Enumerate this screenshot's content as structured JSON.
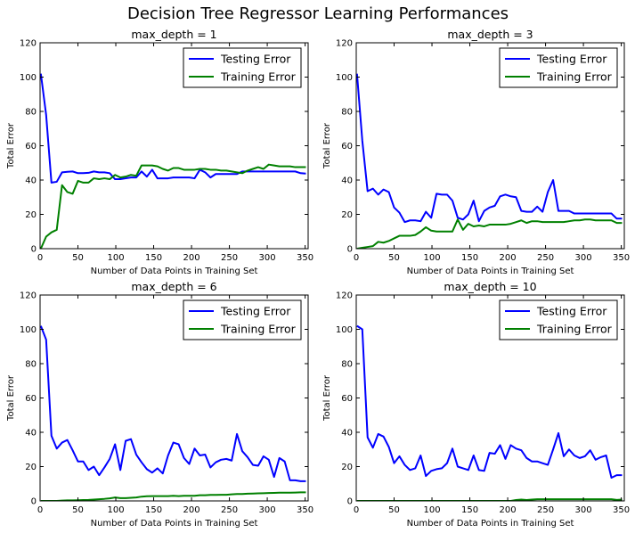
{
  "figure": {
    "suptitle": "Decision Tree Regressor Learning Performances",
    "colors": {
      "testing": "#0000ff",
      "training": "#008000"
    }
  },
  "chart_data": [
    {
      "type": "line",
      "title": "max_depth = 1",
      "xlabel": "Number of Data Points in Training Set",
      "ylabel": "Total Error",
      "xlim": [
        0,
        354
      ],
      "ylim": [
        0,
        120
      ],
      "xticks": [
        0,
        50,
        100,
        150,
        200,
        250,
        300,
        350
      ],
      "yticks": [
        0,
        20,
        40,
        60,
        80,
        100,
        120
      ],
      "legend": "top-right",
      "x": [
        1,
        8,
        15,
        22,
        29,
        36,
        43,
        50,
        57,
        64,
        71,
        78,
        85,
        92,
        99,
        106,
        113,
        120,
        127,
        134,
        141,
        148,
        155,
        162,
        169,
        176,
        183,
        190,
        197,
        204,
        211,
        218,
        225,
        232,
        239,
        246,
        253,
        260,
        267,
        274,
        281,
        288,
        295,
        302,
        309,
        316,
        323,
        330,
        337,
        344,
        351
      ],
      "series": [
        {
          "name": "Testing Error",
          "color": "#0000ff",
          "values": [
            102,
            78,
            38.5,
            39,
            44.5,
            44.8,
            45,
            44,
            44,
            44.2,
            45,
            44.5,
            44.5,
            44,
            40.5,
            40.5,
            41,
            41.5,
            41.5,
            45,
            42,
            46,
            41,
            41,
            41,
            41.5,
            41.5,
            41.5,
            41.5,
            41,
            46,
            44.5,
            41.5,
            43.5,
            43.5,
            43.5,
            43.5,
            43.5,
            45,
            45,
            45,
            45,
            45,
            45,
            45,
            45,
            45,
            45,
            45,
            44,
            43.8
          ]
        },
        {
          "name": "Training Error",
          "color": "#008000",
          "values": [
            0,
            7,
            9.5,
            11,
            37,
            33,
            32,
            39.5,
            38.5,
            38.5,
            41,
            40.5,
            41,
            40.5,
            43,
            41.5,
            42,
            43,
            42.5,
            48.5,
            48.5,
            48.5,
            48,
            46.5,
            45.5,
            47,
            47,
            46,
            46,
            46,
            46.5,
            46.5,
            46,
            46,
            45.5,
            45.5,
            45,
            44.5,
            44,
            45.5,
            46.5,
            47.5,
            46.5,
            49,
            48.5,
            48,
            48,
            48,
            47.5,
            47.5,
            47.5
          ]
        }
      ]
    },
    {
      "type": "line",
      "title": "max_depth = 3",
      "xlabel": "Number of Data Points in Training Set",
      "ylabel": "Total Error",
      "xlim": [
        0,
        354
      ],
      "ylim": [
        0,
        120
      ],
      "xticks": [
        0,
        50,
        100,
        150,
        200,
        250,
        300,
        350
      ],
      "yticks": [
        0,
        20,
        40,
        60,
        80,
        100,
        120
      ],
      "legend": "top-right",
      "x": [
        1,
        8,
        15,
        22,
        29,
        36,
        43,
        50,
        57,
        64,
        71,
        78,
        85,
        92,
        99,
        106,
        113,
        120,
        127,
        134,
        141,
        148,
        155,
        162,
        169,
        176,
        183,
        190,
        197,
        204,
        211,
        218,
        225,
        232,
        239,
        246,
        253,
        260,
        267,
        274,
        281,
        288,
        295,
        302,
        309,
        316,
        323,
        330,
        337,
        344,
        351
      ],
      "series": [
        {
          "name": "Testing Error",
          "color": "#0000ff",
          "values": [
            102,
            63,
            33.5,
            35,
            31.5,
            34.5,
            33,
            24,
            21,
            15.5,
            16.5,
            16.5,
            16,
            21.5,
            18,
            32,
            31.5,
            31.5,
            28,
            18,
            17,
            20,
            28,
            16,
            22,
            24,
            25,
            30.5,
            31.5,
            30.5,
            30,
            22,
            21.5,
            21.5,
            24.5,
            21.5,
            33,
            40,
            22,
            22,
            22,
            20.5,
            20.5,
            20.5,
            20.5,
            20.5,
            20.5,
            20.5,
            20.5,
            17.5,
            17.5
          ]
        },
        {
          "name": "Training Error",
          "color": "#008000",
          "values": [
            0,
            0.5,
            1,
            1.5,
            4,
            3.5,
            4.5,
            6,
            7.5,
            7.5,
            7.5,
            8,
            10,
            12.5,
            10.5,
            10,
            10,
            10,
            10,
            17,
            11,
            14.5,
            13,
            13.5,
            13,
            14,
            14,
            14,
            14,
            14.5,
            15.5,
            16.5,
            15,
            16,
            16,
            15.5,
            15.5,
            15.5,
            15.5,
            15.5,
            16,
            16.5,
            16.5,
            17,
            17,
            16.5,
            16.5,
            16.5,
            16.5,
            15,
            15
          ]
        }
      ]
    },
    {
      "type": "line",
      "title": "max_depth = 6",
      "xlabel": "Number of Data Points in Training Set",
      "ylabel": "Total Error",
      "xlim": [
        0,
        354
      ],
      "ylim": [
        0,
        120
      ],
      "xticks": [
        0,
        50,
        100,
        150,
        200,
        250,
        300,
        350
      ],
      "yticks": [
        0,
        20,
        40,
        60,
        80,
        100,
        120
      ],
      "legend": "top-right",
      "x": [
        1,
        8,
        15,
        22,
        29,
        36,
        43,
        50,
        57,
        64,
        71,
        78,
        85,
        92,
        99,
        106,
        113,
        120,
        127,
        134,
        141,
        148,
        155,
        162,
        169,
        176,
        183,
        190,
        197,
        204,
        211,
        218,
        225,
        232,
        239,
        246,
        253,
        260,
        267,
        274,
        281,
        288,
        295,
        302,
        309,
        316,
        323,
        330,
        337,
        344,
        351
      ],
      "series": [
        {
          "name": "Testing Error",
          "color": "#0000ff",
          "values": [
            102,
            94,
            38,
            30.5,
            34,
            35.5,
            29.5,
            23,
            23,
            18,
            20,
            15,
            19.5,
            24.5,
            33,
            18,
            35,
            36,
            27,
            22.5,
            18.5,
            16.5,
            19,
            16,
            26.5,
            34,
            33,
            25,
            21.5,
            30.5,
            26.5,
            27,
            19.5,
            22.5,
            24,
            24.5,
            23.5,
            39,
            29,
            25.5,
            21,
            20.5,
            26,
            24,
            14,
            25,
            23,
            12,
            12,
            11.5,
            11.5
          ]
        },
        {
          "name": "Training Error",
          "color": "#008000",
          "values": [
            0,
            0,
            0,
            0,
            0.2,
            0.3,
            0.3,
            0.4,
            0.5,
            0.6,
            0.8,
            1,
            1.2,
            1.5,
            2,
            1.6,
            1.6,
            1.8,
            2,
            2.5,
            2.7,
            2.8,
            2.8,
            2.8,
            2.8,
            3,
            2.8,
            3,
            3,
            3,
            3.3,
            3.3,
            3.5,
            3.5,
            3.6,
            3.6,
            3.8,
            4,
            4,
            4.2,
            4.3,
            4.4,
            4.5,
            4.6,
            4.7,
            4.8,
            4.8,
            4.8,
            4.9,
            5,
            5
          ]
        }
      ]
    },
    {
      "type": "line",
      "title": "max_depth = 10",
      "xlabel": "Number of Data Points in Training Set",
      "ylabel": "Total Error",
      "xlim": [
        0,
        354
      ],
      "ylim": [
        0,
        120
      ],
      "xticks": [
        0,
        50,
        100,
        150,
        200,
        250,
        300,
        350
      ],
      "yticks": [
        0,
        20,
        40,
        60,
        80,
        100,
        120
      ],
      "legend": "top-right",
      "x": [
        1,
        8,
        15,
        22,
        29,
        36,
        43,
        50,
        57,
        64,
        71,
        78,
        85,
        92,
        99,
        106,
        113,
        120,
        127,
        134,
        141,
        148,
        155,
        162,
        169,
        176,
        183,
        190,
        197,
        204,
        211,
        218,
        225,
        232,
        239,
        246,
        253,
        260,
        267,
        274,
        281,
        288,
        295,
        302,
        309,
        316,
        323,
        330,
        337,
        344,
        351
      ],
      "series": [
        {
          "name": "Testing Error",
          "color": "#0000ff",
          "values": [
            102,
            100,
            37,
            31,
            39,
            37.5,
            31.5,
            22,
            26,
            21,
            18,
            19,
            26.5,
            14.5,
            17.5,
            18.5,
            19,
            22,
            30.5,
            20,
            19,
            18,
            26.5,
            18,
            17.5,
            28,
            27.5,
            32.5,
            24.5,
            32.5,
            30.5,
            29.5,
            25,
            23,
            23,
            22,
            21,
            30,
            39.5,
            26,
            30,
            26.5,
            25,
            26,
            29.5,
            24,
            25.5,
            26.5,
            13.5,
            15,
            15
          ]
        },
        {
          "name": "Training Error",
          "color": "#008000",
          "values": [
            0,
            0,
            0,
            0,
            0,
            0,
            0,
            0,
            0,
            0,
            0,
            0,
            0,
            0,
            0,
            0,
            0,
            0,
            0,
            0,
            0,
            0,
            0,
            0,
            0,
            0,
            0,
            0,
            0,
            0,
            0.5,
            0.8,
            0.5,
            0.8,
            1,
            1,
            1,
            1,
            1,
            1,
            1,
            1,
            1,
            1,
            1,
            1,
            1,
            1,
            1,
            0.6,
            0.8
          ]
        }
      ]
    }
  ]
}
